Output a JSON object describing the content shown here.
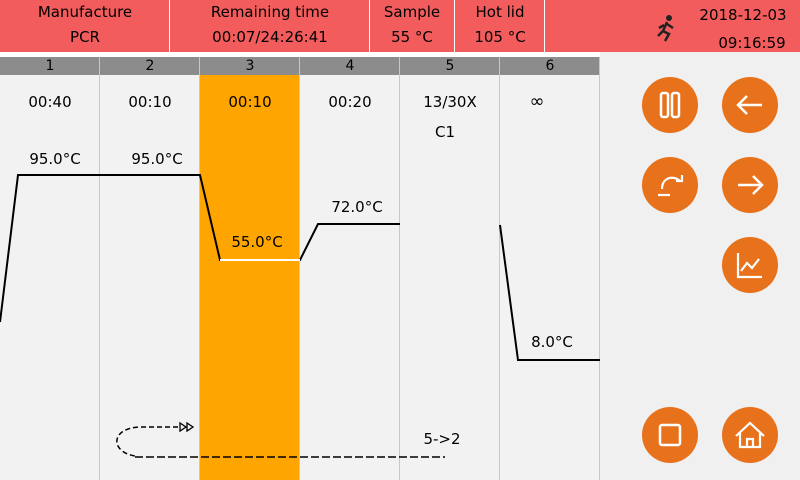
{
  "header": {
    "cells": [
      {
        "label": "Manufacture",
        "value": "PCR"
      },
      {
        "label": "Remaining time",
        "value": "00:07/24:26:41"
      },
      {
        "label": "Sample",
        "value": "55 °C"
      },
      {
        "label": "Hot lid",
        "value": "105 °C"
      }
    ],
    "date": "2018-12-03",
    "time": "09:16:59"
  },
  "steps": [
    {
      "number": "1",
      "time": "00:40",
      "temperature": "95.0°C"
    },
    {
      "number": "2",
      "time": "00:10",
      "temperature": "95.0°C"
    },
    {
      "number": "3",
      "time": "00:10",
      "temperature": "55.0°C"
    },
    {
      "number": "4",
      "time": "00:20",
      "temperature": "72.0°C"
    },
    {
      "number": "5",
      "time": "13/30X",
      "cycle": "C1",
      "loop": "5->2"
    },
    {
      "number": "6",
      "time": "∞",
      "temperature": "8.0°C"
    }
  ]
}
